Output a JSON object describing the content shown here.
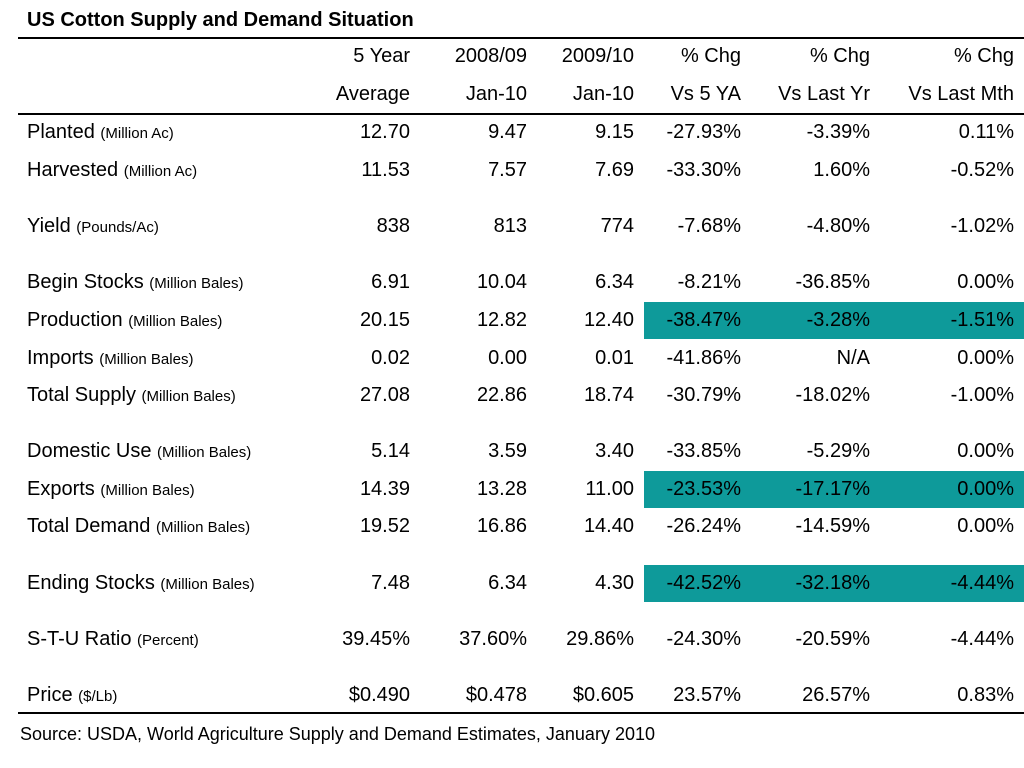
{
  "title": "US Cotton Supply and Demand Situation",
  "colors": {
    "highlight": "#0e9a9a"
  },
  "headers": [
    {
      "line1": "5 Year",
      "line2": "Average"
    },
    {
      "line1": "2008/09",
      "line2": "Jan-10"
    },
    {
      "line1": "2009/10",
      "line2": "Jan-10"
    },
    {
      "line1": "% Chg",
      "line2": "Vs 5 YA"
    },
    {
      "line1": "% Chg",
      "line2": "Vs Last Yr"
    },
    {
      "line1": "% Chg",
      "line2": "Vs Last Mth"
    }
  ],
  "rows": [
    {
      "label": "Planted",
      "unit": "(Million Ac)",
      "values": [
        "12.70",
        "9.47",
        "9.15",
        "-27.93%",
        "-3.39%",
        "0.11%"
      ],
      "highlight": false
    },
    {
      "label": "Harvested",
      "unit": "(Million Ac)",
      "values": [
        "11.53",
        "7.57",
        "7.69",
        "-33.30%",
        "1.60%",
        "-0.52%"
      ],
      "highlight": false
    },
    {
      "label": "Yield",
      "unit": "(Pounds/Ac)",
      "values": [
        "838",
        "813",
        "774",
        "-7.68%",
        "-4.80%",
        "-1.02%"
      ],
      "highlight": false
    },
    {
      "label": "Begin Stocks",
      "unit": "(Million Bales)",
      "values": [
        "6.91",
        "10.04",
        "6.34",
        "-8.21%",
        "-36.85%",
        "0.00%"
      ],
      "highlight": false
    },
    {
      "label": "Production",
      "unit": "(Million Bales)",
      "values": [
        "20.15",
        "12.82",
        "12.40",
        "-38.47%",
        "-3.28%",
        "-1.51%"
      ],
      "highlight": true
    },
    {
      "label": "Imports",
      "unit": "(Million Bales)",
      "values": [
        "0.02",
        "0.00",
        "0.01",
        "-41.86%",
        "N/A",
        "0.00%"
      ],
      "highlight": false
    },
    {
      "label": "Total Supply",
      "unit": "(Million Bales)",
      "values": [
        "27.08",
        "22.86",
        "18.74",
        "-30.79%",
        "-18.02%",
        "-1.00%"
      ],
      "highlight": false
    },
    {
      "label": "Domestic Use",
      "unit": "(Million Bales)",
      "values": [
        "5.14",
        "3.59",
        "3.40",
        "-33.85%",
        "-5.29%",
        "0.00%"
      ],
      "highlight": false
    },
    {
      "label": "Exports",
      "unit": "(Million Bales)",
      "values": [
        "14.39",
        "13.28",
        "11.00",
        "-23.53%",
        "-17.17%",
        "0.00%"
      ],
      "highlight": true
    },
    {
      "label": "Total Demand",
      "unit": "(Million Bales)",
      "values": [
        "19.52",
        "16.86",
        "14.40",
        "-26.24%",
        "-14.59%",
        "0.00%"
      ],
      "highlight": false
    },
    {
      "label": "Ending Stocks",
      "unit": "(Million Bales)",
      "values": [
        "7.48",
        "6.34",
        "4.30",
        "-42.52%",
        "-32.18%",
        "-4.44%"
      ],
      "highlight": true
    },
    {
      "label": "S-T-U Ratio",
      "unit": "(Percent)",
      "values": [
        "39.45%",
        "37.60%",
        "29.86%",
        "-24.30%",
        "-20.59%",
        "-4.44%"
      ],
      "highlight": false
    },
    {
      "label": "Price",
      "unit": "($/Lb)",
      "values": [
        "$0.490",
        "$0.478",
        "$0.605",
        "23.57%",
        "26.57%",
        "0.83%"
      ],
      "highlight": false
    }
  ],
  "source": "Source: USDA, World Agriculture Supply and Demand Estimates, January 2010"
}
